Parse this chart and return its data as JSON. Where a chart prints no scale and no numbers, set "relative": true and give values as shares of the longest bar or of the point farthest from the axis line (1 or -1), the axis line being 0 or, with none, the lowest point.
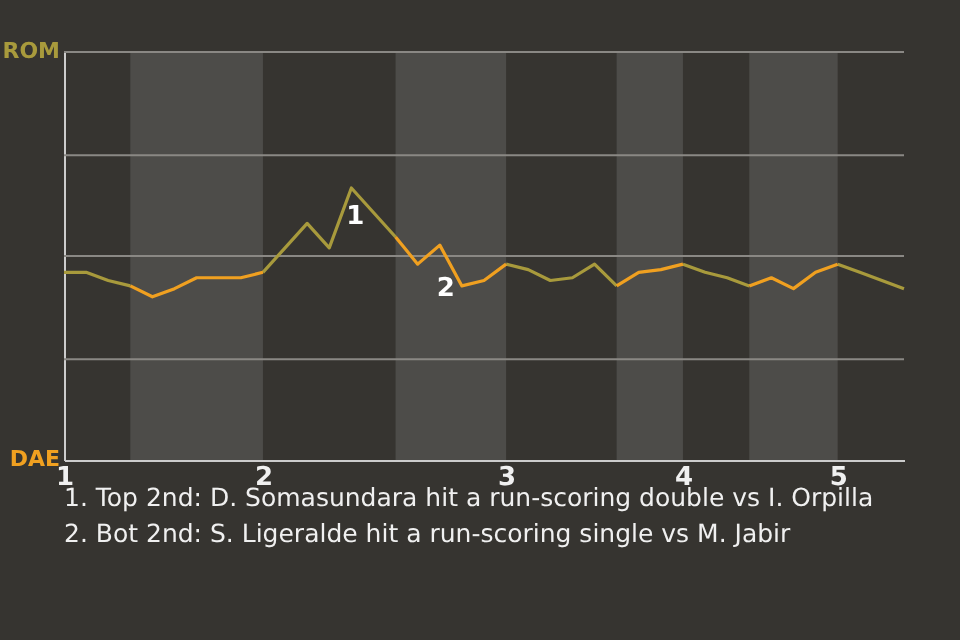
{
  "chart_data": {
    "type": "line",
    "relative": true,
    "categories": [
      "1",
      null,
      null,
      null,
      null,
      null,
      null,
      null,
      null,
      "2",
      null,
      null,
      null,
      null,
      null,
      null,
      null,
      null,
      null,
      null,
      "3",
      null,
      null,
      null,
      null,
      null,
      null,
      null,
      "4",
      null,
      null,
      null,
      null,
      null,
      null,
      "5",
      null,
      null,
      null
    ],
    "series": [
      {
        "color": "#a89a3c",
        "values": [
          0.69,
          0.69,
          0.66,
          0.64,
          null,
          null,
          null,
          null,
          null,
          0.69,
          0.78,
          0.87,
          0.78,
          1,
          0.91,
          0.82,
          null,
          null,
          null,
          null,
          0.72,
          0.7,
          0.66,
          0.67,
          0.72,
          0.64,
          null,
          null,
          0.72,
          0.69,
          0.67,
          0.64,
          null,
          null,
          null,
          0.72,
          0.69,
          0.66,
          0.63
        ]
      },
      {
        "color": "#f0a020",
        "values": [
          null,
          null,
          null,
          0.64,
          0.6,
          0.63,
          0.67,
          0.67,
          0.67,
          0.69,
          null,
          null,
          null,
          null,
          null,
          0.82,
          0.72,
          0.79,
          0.64,
          0.66,
          0.72,
          null,
          null,
          null,
          null,
          0.64,
          0.69,
          0.7,
          0.72,
          null,
          null,
          0.64,
          0.67,
          0.63,
          0.69,
          0.72,
          null,
          null,
          null
        ]
      }
    ],
    "ref_lines": [
      {
        "axis": "y",
        "value": 0.37,
        "color": "#8a8884"
      },
      {
        "axis": "y",
        "value": 0.75,
        "color": "#8a8884"
      },
      {
        "axis": "y",
        "value": 1.12,
        "color": "#8a8884"
      }
    ],
    "annotations": [
      "ROM",
      "DAE",
      "1",
      "2",
      "1. Top 2nd: D. Somasundara hit a run-scoring double vs I. Orpilla",
      "2. Bot 2nd: S. Ligeralde hit a run-scoring single vs M. Jabir"
    ]
  }
}
